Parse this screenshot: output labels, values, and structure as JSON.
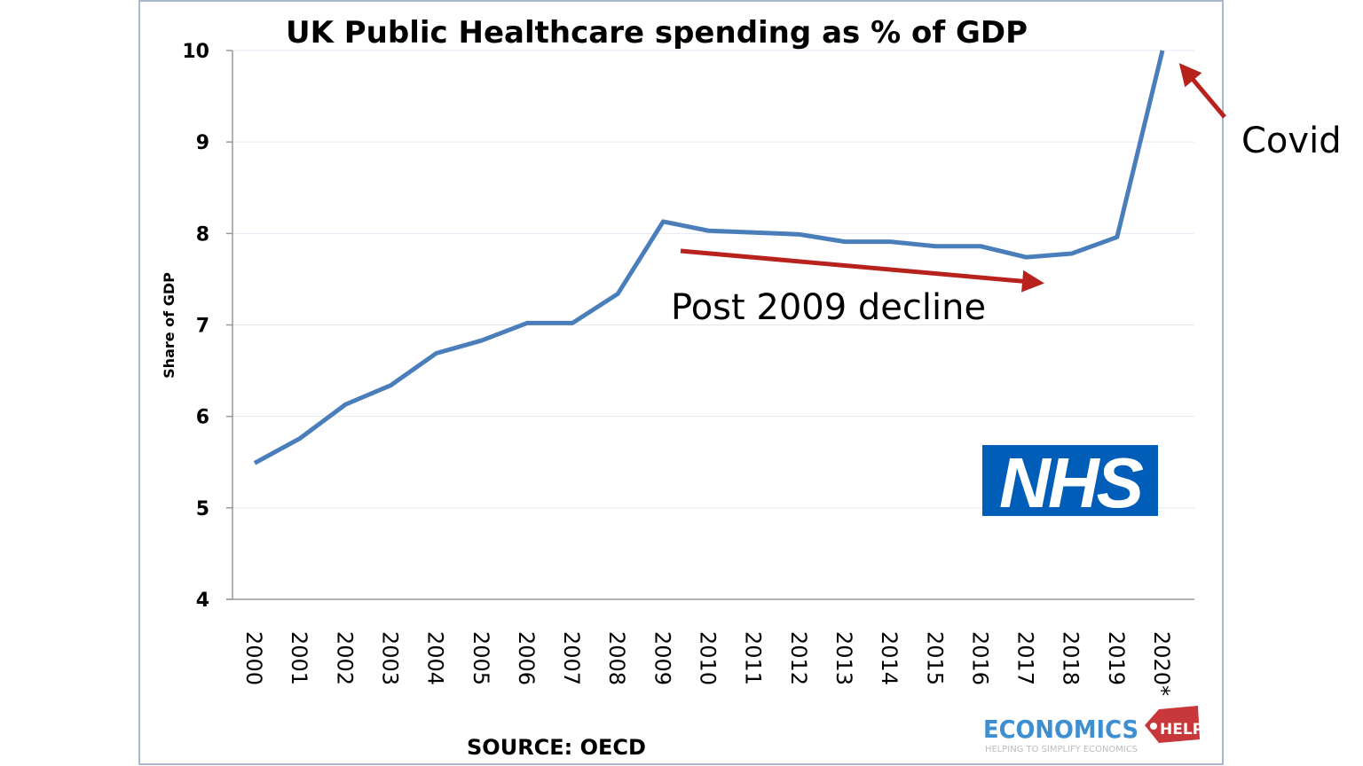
{
  "chart_data": {
    "type": "line",
    "title": "UK Public Healthcare spending as % of GDP",
    "xlabel": "",
    "ylabel": "Share of GDP",
    "ylim": [
      4,
      10
    ],
    "yticks": [
      "4",
      "5",
      "6",
      "7",
      "8",
      "9",
      "10"
    ],
    "grid": true,
    "categories": [
      "2000",
      "2001",
      "2002",
      "2003",
      "2004",
      "2005",
      "2006",
      "2007",
      "2008",
      "2009",
      "2010",
      "2011",
      "2012",
      "2013",
      "2014",
      "2015",
      "2016",
      "2017",
      "2018",
      "2019",
      "2020*"
    ],
    "values": [
      5.49,
      5.76,
      6.13,
      6.34,
      6.69,
      6.83,
      7.02,
      7.02,
      7.34,
      8.13,
      8.03,
      8.01,
      7.99,
      7.91,
      7.91,
      7.86,
      7.86,
      7.74,
      7.78,
      7.96,
      10.0
    ],
    "line_color": "#4a7ebb",
    "annotations": [
      {
        "text": "Post 2009 decline",
        "color": "#b8221d"
      },
      {
        "text": "Covid",
        "color": "#b8221d"
      }
    ],
    "source": "SOURCE: OECD"
  },
  "logos": {
    "nhs": {
      "text": "NHS",
      "color": "#005eb8"
    },
    "economics_help": {
      "text": "ECONOMICS",
      "tag": "HELP",
      "tagline": "HELPING TO SIMPLIFY ECONOMICS"
    }
  }
}
